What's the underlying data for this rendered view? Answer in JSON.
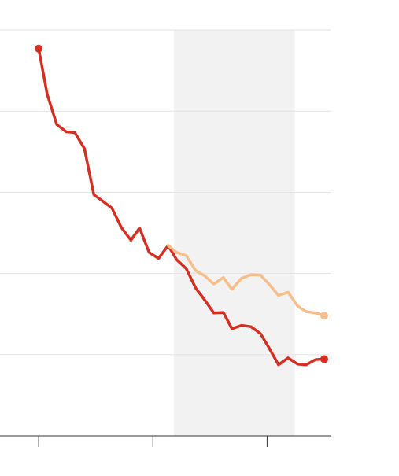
{
  "chart_data": {
    "type": "line",
    "title": "",
    "xlabel": "",
    "ylabel": "",
    "xlim": [
      0,
      31
    ],
    "ylim": [
      0,
      100
    ],
    "x_ticks": [
      1,
      13,
      25
    ],
    "y_gridlines": [
      20,
      40,
      60,
      80,
      100
    ],
    "shaded_region": {
      "x_start": 15.2,
      "x_end": 27.9,
      "color": "#f2f2f2"
    },
    "grid": true,
    "legend": "none",
    "series": [
      {
        "color": "#d62f22",
        "end_marker": true,
        "start_marker": true,
        "points": [
          [
            1,
            95.4
          ],
          [
            1.9,
            84.1
          ],
          [
            2.9,
            76.7
          ],
          [
            3.9,
            74.9
          ],
          [
            4.8,
            74.7
          ],
          [
            5.8,
            70.8
          ],
          [
            6.8,
            59.4
          ],
          [
            7.8,
            57.7
          ],
          [
            8.7,
            56.1
          ],
          [
            9.7,
            51.3
          ],
          [
            10.7,
            48.2
          ],
          [
            11.6,
            51.2
          ],
          [
            12.6,
            45.2
          ],
          [
            13.6,
            43.7
          ],
          [
            14.6,
            46.9
          ],
          [
            15.5,
            43.4
          ],
          [
            16.5,
            41.2
          ],
          [
            17.5,
            36.4
          ],
          [
            18.4,
            33.6
          ],
          [
            19.4,
            30.3
          ],
          [
            20.4,
            30.4
          ],
          [
            21.3,
            26.4
          ],
          [
            22.3,
            27.2
          ],
          [
            23.3,
            26.9
          ],
          [
            24.3,
            25.2
          ],
          [
            25.2,
            21.7
          ],
          [
            26.2,
            17.5
          ],
          [
            27.2,
            19.2
          ],
          [
            28.2,
            17.7
          ],
          [
            29.1,
            17.5
          ],
          [
            30.1,
            18.8
          ],
          [
            31,
            18.9
          ]
        ]
      },
      {
        "color": "#f7be8b",
        "end_marker": true,
        "start_marker": false,
        "points": [
          [
            14.6,
            46.9
          ],
          [
            15.5,
            45.2
          ],
          [
            16.5,
            44.4
          ],
          [
            17.5,
            40.7
          ],
          [
            18.4,
            39.5
          ],
          [
            19.4,
            37.4
          ],
          [
            20.4,
            39.0
          ],
          [
            21.3,
            36.1
          ],
          [
            22.3,
            38.8
          ],
          [
            23.3,
            39.7
          ],
          [
            24.3,
            39.6
          ],
          [
            25.2,
            37.4
          ],
          [
            26.2,
            34.6
          ],
          [
            27.2,
            35.4
          ],
          [
            28.2,
            32.0
          ],
          [
            29.1,
            30.6
          ],
          [
            30.1,
            30.3
          ],
          [
            31,
            29.6
          ]
        ]
      }
    ]
  }
}
